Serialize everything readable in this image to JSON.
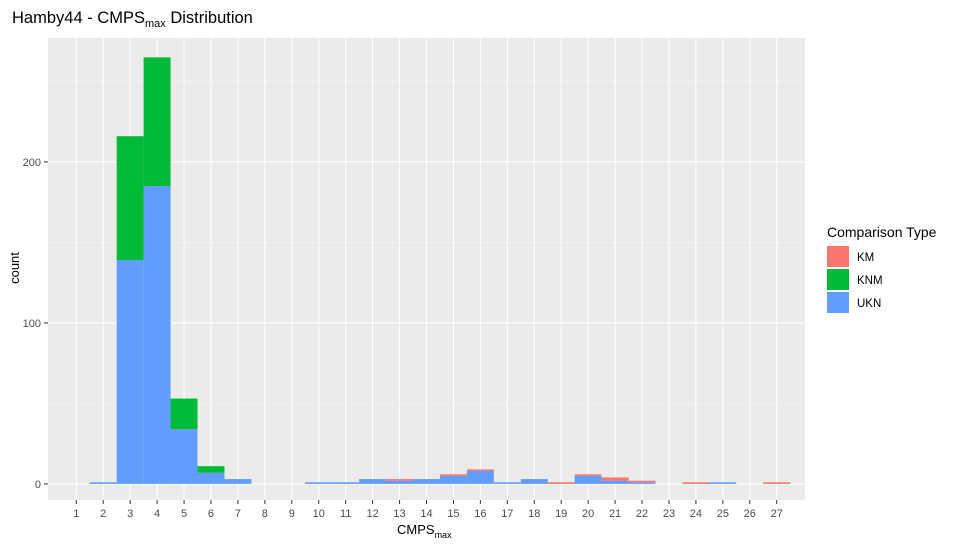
{
  "chart_data": {
    "type": "bar",
    "stacked": true,
    "title": {
      "main": "Hamby44 - CMPS",
      "sub": "max",
      "suffix": " Distribution"
    },
    "xlabel": {
      "main": "CMPS",
      "sub": "max"
    },
    "ylabel": "count",
    "categories": [
      "1",
      "2",
      "3",
      "4",
      "5",
      "6",
      "7",
      "8",
      "9",
      "10",
      "11",
      "12",
      "13",
      "14",
      "15",
      "16",
      "17",
      "18",
      "19",
      "20",
      "21",
      "22",
      "23",
      "24",
      "25",
      "26",
      "27"
    ],
    "ylim": [
      -10,
      277
    ],
    "yticks": [
      0,
      100,
      200
    ],
    "grid": true,
    "legend": {
      "title": "Comparison Type",
      "position": "right"
    },
    "series": [
      {
        "name": "UKN",
        "color": "#619CFF",
        "values": [
          0,
          1,
          139,
          185,
          34,
          7,
          3,
          0,
          0,
          1,
          1,
          3,
          2,
          3,
          5,
          8,
          1,
          3,
          0,
          5,
          2,
          1,
          0,
          0,
          1,
          0,
          0
        ]
      },
      {
        "name": "KNM",
        "color": "#00BA38",
        "values": [
          0,
          0,
          77,
          80,
          19,
          4,
          0,
          0,
          0,
          0,
          0,
          0,
          0,
          0,
          0,
          0,
          0,
          0,
          0,
          0,
          0,
          0,
          0,
          0,
          0,
          0,
          0
        ]
      },
      {
        "name": "KM",
        "color": "#F8766D",
        "values": [
          0,
          0,
          0,
          0,
          0,
          0,
          0,
          0,
          0,
          0,
          0,
          0,
          1,
          0,
          1,
          1,
          0,
          0,
          1,
          1,
          2,
          1,
          0,
          1,
          0,
          0,
          1
        ]
      }
    ],
    "legend_order": [
      "KM",
      "KNM",
      "UKN"
    ]
  },
  "colors": {
    "panel": "#EBEBEB",
    "grid": "#FFFFFF",
    "text": "#000000",
    "tick_text": "#4D4D4D"
  }
}
